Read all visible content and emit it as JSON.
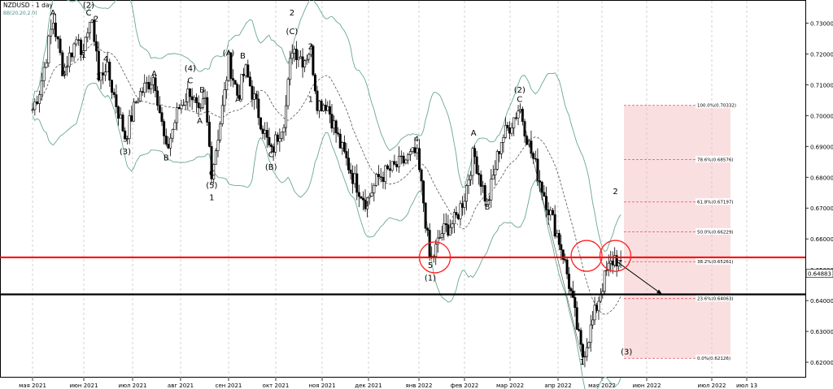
{
  "symbol": {
    "title": "NZDUSD - 1 day",
    "indicator": "BB(20,20,2.0)"
  },
  "chart_data": {
    "type": "candlestick",
    "ylim": [
      0.615,
      0.7375
    ],
    "grid": true,
    "x_ticks": [
      "мая 2021",
      "июн 2021",
      "июл 2021",
      "авг 2021",
      "сен 2021",
      "окт 2021",
      "ноя 2021",
      "дек 2021",
      "янв 2022",
      "фев 2022",
      "мар 2022",
      "апр 2022",
      "мая 2022",
      "июн 2022",
      "июл 2022",
      "июл 13"
    ],
    "y_ticks": [
      "0.73000",
      "0.72000",
      "0.71000",
      "0.70000",
      "0.69000",
      "0.68000",
      "0.67000",
      "0.66000",
      "0.65000",
      "0.64000",
      "0.63000",
      "0.62000"
    ],
    "current_price": "0.64883",
    "horizontal_lines": [
      {
        "name": "resistance",
        "price": 0.654,
        "color": "#ff0000"
      },
      {
        "name": "target",
        "price": 0.642,
        "color": "#000000"
      }
    ],
    "fibonacci": [
      {
        "label": "100.0%(0.70332)",
        "price": 0.70332
      },
      {
        "label": "78.6%(0.68576)",
        "price": 0.68576
      },
      {
        "label": "61.8%(0.67197)",
        "price": 0.67197
      },
      {
        "label": "50.0%(0.66229)",
        "price": 0.66229
      },
      {
        "label": "38.2%(0.65261)",
        "price": 0.65261
      },
      {
        "label": "23.6%(0.64063)",
        "price": 0.64063
      },
      {
        "label": "0.0%(0.62126)",
        "price": 0.62126
      }
    ],
    "wave_labels": [
      {
        "text": "(2)",
        "date": 1.1,
        "price": 0.735
      },
      {
        "text": "A",
        "date": 0.4,
        "price": 0.7325
      },
      {
        "text": "C",
        "date": 1.1,
        "price": 0.7325
      },
      {
        "text": "2",
        "date": 1.25,
        "price": 0.7305
      },
      {
        "text": "1",
        "date": 1.0,
        "price": 0.7188
      },
      {
        "text": "B",
        "date": 0.6,
        "price": 0.7127
      },
      {
        "text": "4",
        "date": 1.45,
        "price": 0.7175
      },
      {
        "text": "3",
        "date": 1.3,
        "price": 0.7118
      },
      {
        "text": "A",
        "date": 2.45,
        "price": 0.7127
      },
      {
        "text": "5",
        "date": 1.85,
        "price": 0.6915
      },
      {
        "text": "(3)",
        "date": 1.85,
        "price": 0.6875
      },
      {
        "text": "B",
        "date": 2.7,
        "price": 0.6855
      },
      {
        "text": "(4)",
        "date": 3.2,
        "price": 0.7145
      },
      {
        "text": "C",
        "date": 3.2,
        "price": 0.7105
      },
      {
        "text": "B",
        "date": 3.45,
        "price": 0.7075
      },
      {
        "text": "A",
        "date": 3.4,
        "price": 0.6975
      },
      {
        "text": "C",
        "date": 3.65,
        "price": 0.6805
      },
      {
        "text": "(5)",
        "date": 3.65,
        "price": 0.6765
      },
      {
        "text": "1",
        "date": 3.65,
        "price": 0.6725
      },
      {
        "text": "(A)",
        "date": 4.0,
        "price": 0.7195
      },
      {
        "text": "B",
        "date": 4.3,
        "price": 0.7185
      },
      {
        "text": "A",
        "date": 4.2,
        "price": 0.7045
      },
      {
        "text": "C",
        "date": 4.9,
        "price": 0.6865
      },
      {
        "text": "(B)",
        "date": 4.9,
        "price": 0.6825
      },
      {
        "text": "2",
        "date": 5.35,
        "price": 0.7325
      },
      {
        "text": "(C)",
        "date": 5.35,
        "price": 0.7265
      },
      {
        "text": "2",
        "date": 5.75,
        "price": 0.7215
      },
      {
        "text": "1",
        "date": 5.75,
        "price": 0.7045
      },
      {
        "text": "3",
        "date": 6.95,
        "price": 0.6705
      },
      {
        "text": "4",
        "date": 7.95,
        "price": 0.6915
      },
      {
        "text": "5",
        "date": 8.25,
        "price": 0.6505
      },
      {
        "text": "(1)",
        "date": 8.25,
        "price": 0.6465
      },
      {
        "text": "A",
        "date": 9.2,
        "price": 0.6935
      },
      {
        "text": "B",
        "date": 9.5,
        "price": 0.6695
      },
      {
        "text": "(2)",
        "date": 10.2,
        "price": 0.7075
      },
      {
        "text": "C",
        "date": 10.2,
        "price": 0.7045
      },
      {
        "text": "2",
        "date": 12.3,
        "price": 0.6745
      },
      {
        "text": "1",
        "date": 11.55,
        "price": 0.6192
      },
      {
        "text": "(3)",
        "date": 12.55,
        "price": 0.6225
      }
    ],
    "circles": [
      {
        "date": 8.35,
        "price": 0.654
      },
      {
        "date": 11.65,
        "price": 0.6545
      },
      {
        "date": 12.3,
        "price": 0.6545
      }
    ]
  }
}
